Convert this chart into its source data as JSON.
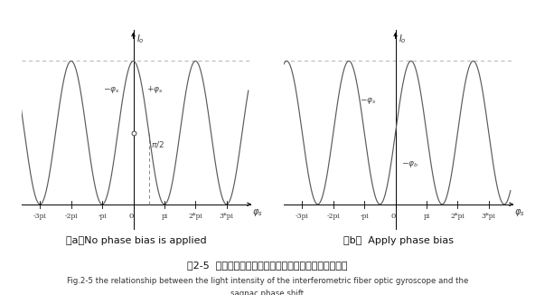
{
  "title_cn": "图2-5  干涉式光纤陀螺的光强与萨格奈克相移变化的关系",
  "title_en_line1": "Fig.2-5 the relationship between the light intensity of the interferometric fiber optic gyroscope and the",
  "title_en_line2": "sagnac phase shift",
  "subtitle_a": "（a）No phase bias is applied",
  "subtitle_b": "（b）  Apply phase bias",
  "x_ticks": [
    "-3pi",
    "-2pi",
    "-pi",
    "0",
    "pi",
    "2*pi",
    "3*pi"
  ],
  "x_tick_vals": [
    -3,
    -2,
    -1,
    0,
    1,
    2,
    3
  ],
  "background_color": "#ffffff",
  "curve_color": "#5a5a5a",
  "axis_color": "#000000",
  "dashed_color": "#aaaaaa",
  "annotation_color": "#444444",
  "xlim": [
    -3.6,
    3.8
  ],
  "ylim": [
    -0.18,
    1.22
  ]
}
